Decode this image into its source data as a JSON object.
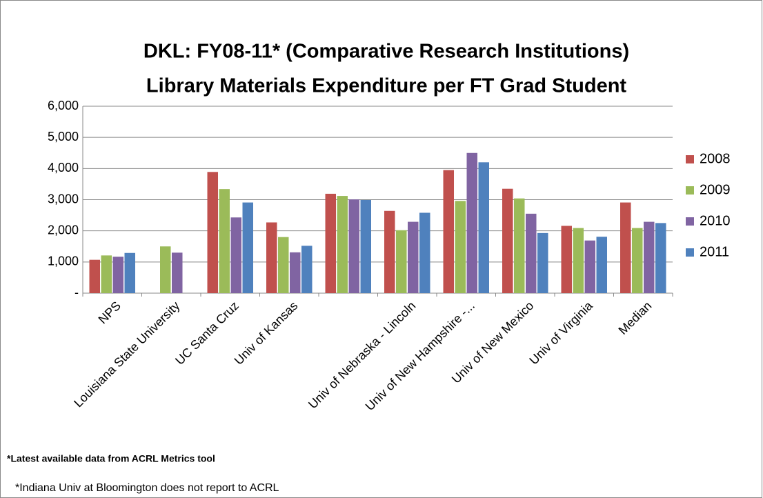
{
  "chart_data": {
    "type": "bar",
    "title": "DKL: FY08-11* (Comparative Research Institutions)",
    "subtitle": "Library Materials Expenditure per FT Grad Student",
    "categories": [
      "NPS",
      "Louisiana State University",
      "UC Santa Cruz",
      "Univ of Kansas",
      null,
      "Univ of Nebraska - Lincoln",
      "Univ of New Hampshire -...",
      "Univ of New Mexico",
      "Univ of Virginia",
      "Median"
    ],
    "series": [
      {
        "name": "2008",
        "color": "#c0504d",
        "values": [
          1070,
          null,
          3890,
          2270,
          3190,
          2640,
          3950,
          3350,
          2160,
          2910
        ]
      },
      {
        "name": "2009",
        "color": "#9bbb59",
        "values": [
          1210,
          1500,
          3340,
          1800,
          3120,
          2020,
          2960,
          3040,
          2090,
          2090
        ]
      },
      {
        "name": "2010",
        "color": "#8064a2",
        "values": [
          1170,
          1300,
          2430,
          1310,
          3010,
          2290,
          4500,
          2550,
          1690,
          2290
        ]
      },
      {
        "name": "2011",
        "color": "#4f81bd",
        "values": [
          1290,
          null,
          2910,
          1520,
          2990,
          2580,
          4200,
          1930,
          1810,
          2250
        ]
      }
    ],
    "ylim": [
      0,
      6000
    ],
    "yticks": [
      {
        "value": 0,
        "label": "-"
      },
      {
        "value": 1000,
        "label": "1,000"
      },
      {
        "value": 2000,
        "label": "2,000"
      },
      {
        "value": 3000,
        "label": "3,000"
      },
      {
        "value": 4000,
        "label": "4,000"
      },
      {
        "value": 5000,
        "label": "5,000"
      },
      {
        "value": 6000,
        "label": "6,000"
      }
    ],
    "grid": true,
    "legend": "right",
    "annotations": [
      "*Latest available data from ACRL Metrics tool",
      "*Indiana Univ at Bloomington does not report to ACRL"
    ]
  }
}
